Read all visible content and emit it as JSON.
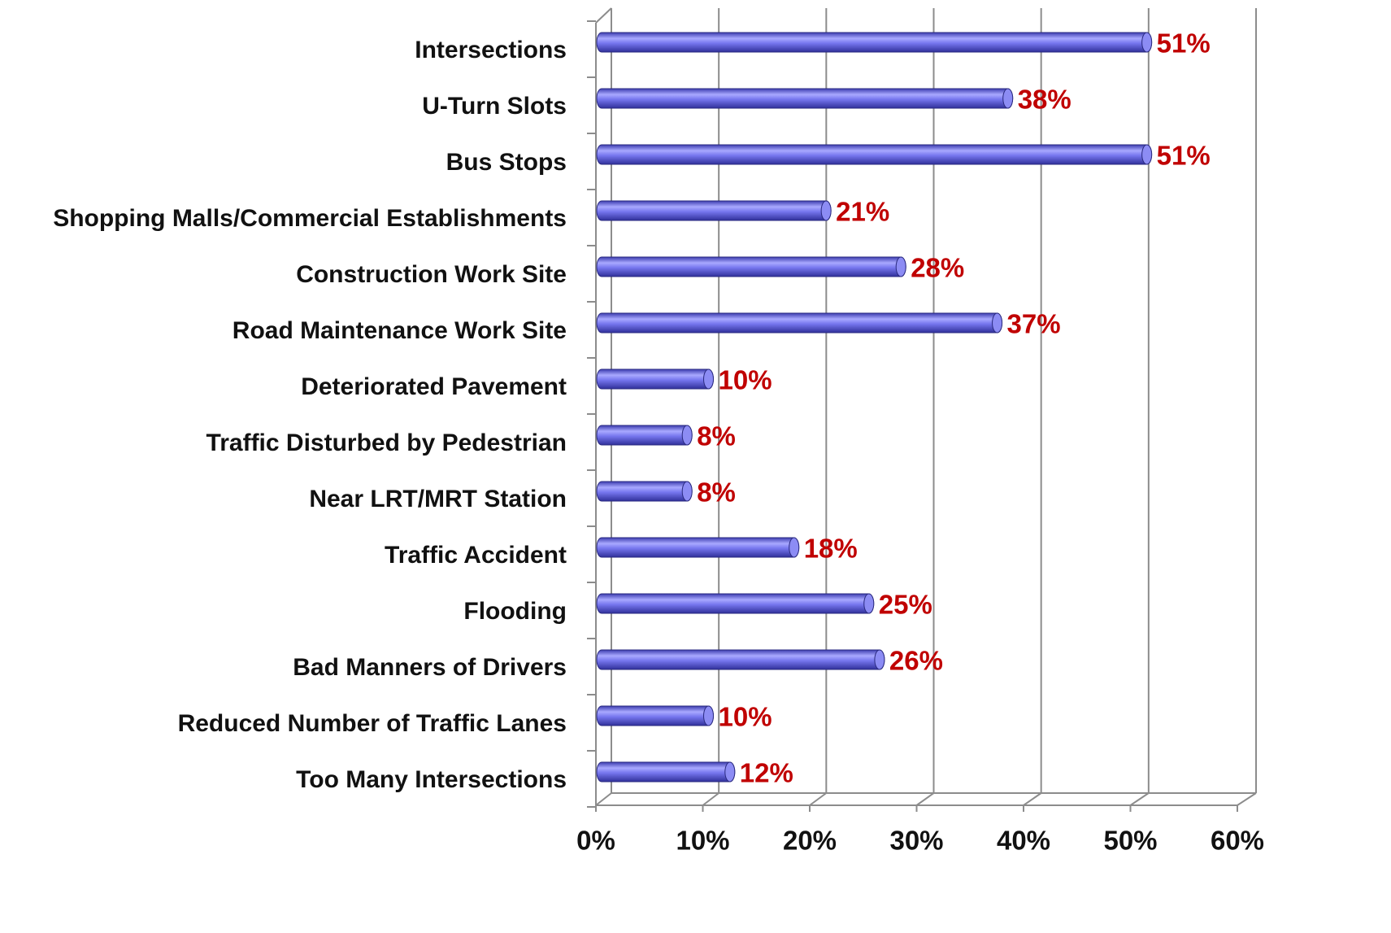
{
  "chart_data": {
    "type": "barh",
    "categories": [
      "Intersections",
      "U-Turn Slots",
      "Bus Stops",
      "Shopping Malls/Commercial Establishments",
      "Construction Work Site",
      "Road Maintenance Work Site",
      "Deteriorated Pavement",
      "Traffic Disturbed by Pedestrian",
      "Near LRT/MRT Station",
      "Traffic Accident",
      "Flooding",
      "Bad Manners of Drivers",
      "Reduced Number of Traffic Lanes",
      "Too Many Intersections"
    ],
    "values": [
      51,
      38,
      51,
      21,
      28,
      37,
      10,
      8,
      8,
      18,
      25,
      26,
      10,
      12
    ],
    "value_labels": [
      "51%",
      "38%",
      "51%",
      "21%",
      "28%",
      "37%",
      "10%",
      "8%",
      "8%",
      "18%",
      "25%",
      "26%",
      "10%",
      "12%"
    ],
    "color": "#6f6fe8",
    "xlim": [
      0,
      60
    ],
    "xticks": [
      {
        "value": 0,
        "label": "0%"
      },
      {
        "value": 10,
        "label": "10%"
      },
      {
        "value": 20,
        "label": "20%"
      },
      {
        "value": 30,
        "label": "30%"
      },
      {
        "value": 40,
        "label": "40%"
      },
      {
        "value": 50,
        "label": "50%"
      },
      {
        "value": 60,
        "label": "60%"
      }
    ],
    "grid": true
  }
}
